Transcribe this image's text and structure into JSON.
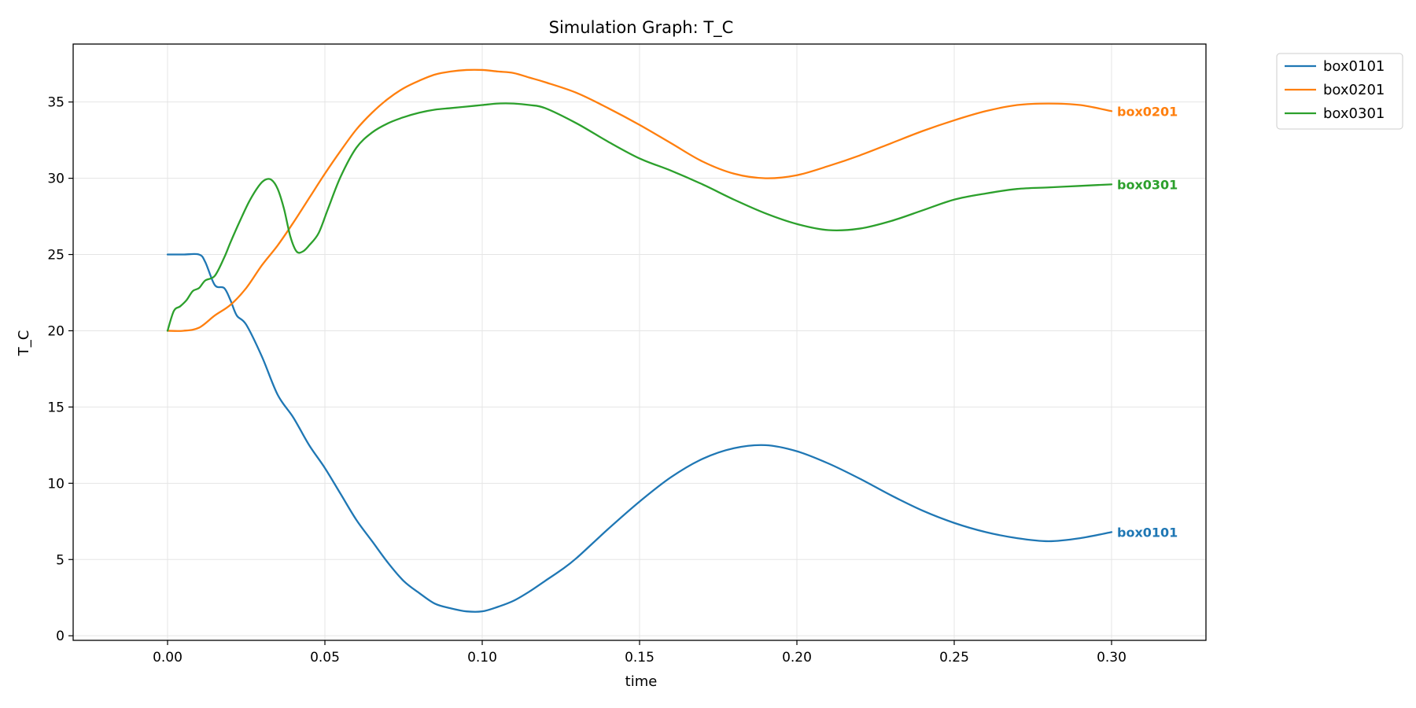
{
  "chart_data": {
    "type": "line",
    "title": "Simulation Graph: T_C",
    "xlabel": "time",
    "ylabel": "T_C",
    "xlim": [
      -0.03,
      0.33
    ],
    "ylim": [
      -0.3,
      38.8
    ],
    "xticks": [
      0.0,
      0.05,
      0.1,
      0.15,
      0.2,
      0.25,
      0.3
    ],
    "xtick_labels": [
      "0.00",
      "0.05",
      "0.10",
      "0.15",
      "0.20",
      "0.25",
      "0.30"
    ],
    "yticks": [
      0,
      5,
      10,
      15,
      20,
      25,
      30,
      35
    ],
    "ytick_labels": [
      "0",
      "5",
      "10",
      "15",
      "20",
      "25",
      "30",
      "35"
    ],
    "grid": true,
    "legend_position": "outside top-right",
    "series": [
      {
        "name": "box0101",
        "color": "#1f77b4",
        "end_label": "box0101",
        "x": [
          0.0,
          0.005,
          0.01,
          0.012,
          0.015,
          0.018,
          0.02,
          0.022,
          0.025,
          0.03,
          0.035,
          0.04,
          0.045,
          0.05,
          0.055,
          0.06,
          0.065,
          0.07,
          0.075,
          0.08,
          0.085,
          0.09,
          0.095,
          0.1,
          0.105,
          0.11,
          0.115,
          0.12,
          0.125,
          0.13,
          0.14,
          0.15,
          0.16,
          0.17,
          0.18,
          0.19,
          0.2,
          0.21,
          0.22,
          0.23,
          0.24,
          0.25,
          0.26,
          0.27,
          0.28,
          0.29,
          0.3
        ],
        "y": [
          25.0,
          25.0,
          25.0,
          24.5,
          23.0,
          22.8,
          22.0,
          21.0,
          20.4,
          18.3,
          15.8,
          14.3,
          12.5,
          11.0,
          9.3,
          7.6,
          6.2,
          4.8,
          3.6,
          2.8,
          2.1,
          1.8,
          1.6,
          1.6,
          1.9,
          2.3,
          2.9,
          3.6,
          4.3,
          5.1,
          7.0,
          8.8,
          10.4,
          11.6,
          12.3,
          12.5,
          12.1,
          11.3,
          10.3,
          9.2,
          8.2,
          7.4,
          6.8,
          6.4,
          6.2,
          6.4,
          6.8
        ]
      },
      {
        "name": "box0201",
        "color": "#ff7f0e",
        "end_label": "box0201",
        "x": [
          0.0,
          0.005,
          0.01,
          0.015,
          0.02,
          0.025,
          0.03,
          0.035,
          0.04,
          0.045,
          0.05,
          0.055,
          0.06,
          0.065,
          0.07,
          0.075,
          0.08,
          0.085,
          0.09,
          0.095,
          0.1,
          0.105,
          0.11,
          0.115,
          0.12,
          0.13,
          0.14,
          0.15,
          0.16,
          0.17,
          0.18,
          0.19,
          0.2,
          0.21,
          0.22,
          0.23,
          0.24,
          0.25,
          0.26,
          0.27,
          0.28,
          0.29,
          0.3
        ],
        "y": [
          20.0,
          20.0,
          20.2,
          21.0,
          21.7,
          22.8,
          24.3,
          25.6,
          27.1,
          28.7,
          30.3,
          31.8,
          33.2,
          34.3,
          35.2,
          35.9,
          36.4,
          36.8,
          37.0,
          37.1,
          37.1,
          37.0,
          36.9,
          36.6,
          36.3,
          35.6,
          34.6,
          33.5,
          32.3,
          31.1,
          30.3,
          30.0,
          30.2,
          30.8,
          31.5,
          32.3,
          33.1,
          33.8,
          34.4,
          34.8,
          34.9,
          34.8,
          34.4
        ]
      },
      {
        "name": "box0301",
        "color": "#2ca02c",
        "end_label": "box0301",
        "x": [
          0.0,
          0.002,
          0.004,
          0.006,
          0.008,
          0.01,
          0.012,
          0.015,
          0.018,
          0.02,
          0.023,
          0.026,
          0.029,
          0.031,
          0.033,
          0.035,
          0.037,
          0.039,
          0.041,
          0.043,
          0.045,
          0.048,
          0.051,
          0.055,
          0.06,
          0.065,
          0.07,
          0.075,
          0.08,
          0.085,
          0.09,
          0.095,
          0.1,
          0.105,
          0.11,
          0.115,
          0.12,
          0.13,
          0.14,
          0.15,
          0.16,
          0.17,
          0.18,
          0.19,
          0.2,
          0.21,
          0.22,
          0.23,
          0.24,
          0.25,
          0.26,
          0.27,
          0.28,
          0.29,
          0.3
        ],
        "y": [
          20.0,
          21.3,
          21.6,
          22.0,
          22.6,
          22.8,
          23.3,
          23.6,
          24.8,
          25.8,
          27.2,
          28.5,
          29.5,
          29.9,
          29.9,
          29.3,
          28.0,
          26.2,
          25.2,
          25.2,
          25.6,
          26.4,
          28.0,
          30.1,
          32.0,
          33.0,
          33.6,
          34.0,
          34.3,
          34.5,
          34.6,
          34.7,
          34.8,
          34.9,
          34.9,
          34.8,
          34.6,
          33.6,
          32.4,
          31.3,
          30.5,
          29.6,
          28.6,
          27.7,
          27.0,
          26.6,
          26.7,
          27.2,
          27.9,
          28.6,
          29.0,
          29.3,
          29.4,
          29.5,
          29.6
        ]
      }
    ]
  }
}
